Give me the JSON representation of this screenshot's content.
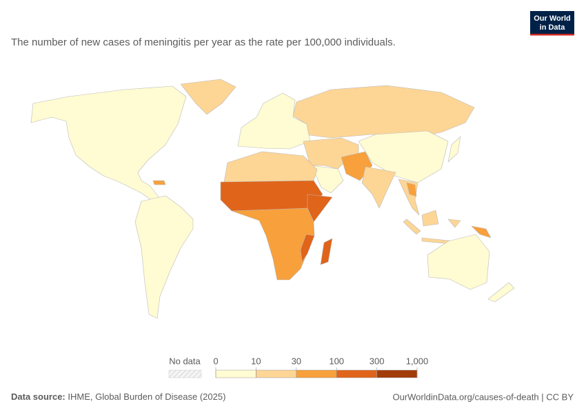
{
  "subtitle": "The number of new cases of meningitis per year as the rate per 100,000 individuals.",
  "logo": {
    "line1": "Our World",
    "line2": "in Data"
  },
  "legend": {
    "no_data_label": "No data",
    "ticks": [
      0,
      10,
      30,
      100,
      300,
      {
        "value": 1000,
        "label": "1,000"
      }
    ],
    "colors": [
      "#fffbd2",
      "#fdd595",
      "#f7a03c",
      "#e0641a",
      "#a23c0a"
    ]
  },
  "footer": {
    "source_label": "Data source:",
    "source": "IHME, Global Burden of Disease (2025)",
    "link": "OurWorldinData.org/causes-of-death | CC BY"
  }
}
